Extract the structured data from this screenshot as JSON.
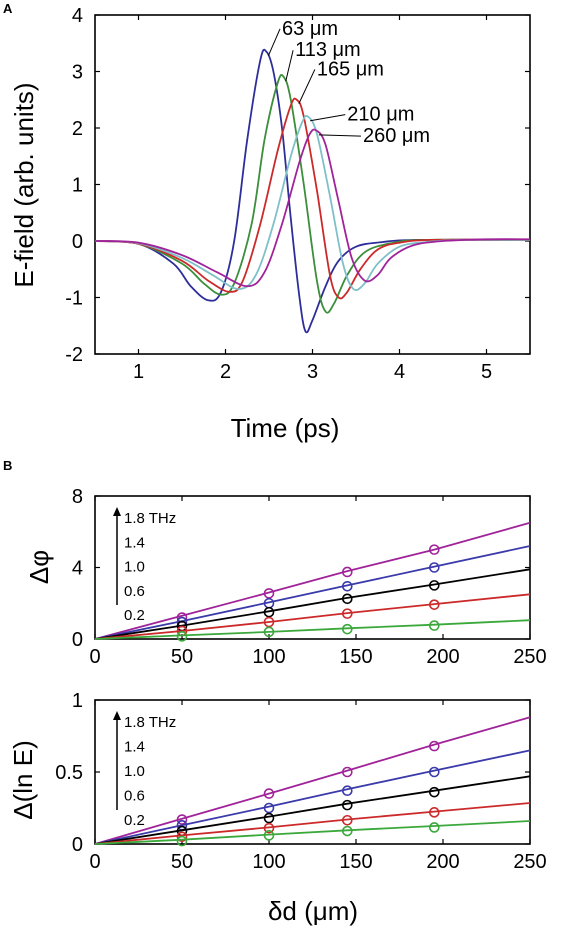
{
  "chart_data": [
    {
      "panel": "A",
      "type": "line",
      "xlabel": "Time (ps)",
      "ylabel": "E-field (arb. units)",
      "xlim": [
        0.5,
        5.5
      ],
      "ylim": [
        -2,
        4
      ],
      "xticks": [
        1,
        2,
        3,
        4,
        5
      ],
      "yticks": [
        -2,
        -1,
        0,
        1,
        2,
        3,
        4
      ],
      "grid": false,
      "series": [
        {
          "name": "63 μm",
          "color": "#2e2e9a",
          "x": [
            0.5,
            1.0,
            1.4,
            1.6,
            1.8,
            1.95,
            2.1,
            2.25,
            2.4,
            2.47,
            2.55,
            2.65,
            2.75,
            2.85,
            2.92,
            3.0,
            3.15,
            3.3,
            3.5,
            3.8,
            4.2,
            5.5
          ],
          "y": [
            0,
            -0.05,
            -0.4,
            -0.8,
            -1.05,
            -0.9,
            0.0,
            1.8,
            3.2,
            3.35,
            3.0,
            2.0,
            0.4,
            -1.0,
            -1.6,
            -1.4,
            -0.8,
            -0.35,
            -0.1,
            -0.02,
            0.02,
            0.02
          ]
        },
        {
          "name": "113 μm",
          "color": "#3b8e3b",
          "x": [
            0.5,
            1.0,
            1.5,
            1.75,
            1.95,
            2.1,
            2.3,
            2.45,
            2.6,
            2.67,
            2.75,
            2.9,
            3.05,
            3.15,
            3.25,
            3.4,
            3.6,
            3.9,
            4.3,
            5.5
          ],
          "y": [
            0,
            -0.05,
            -0.4,
            -0.75,
            -0.95,
            -0.75,
            0.3,
            1.8,
            2.8,
            2.9,
            2.5,
            1.0,
            -0.7,
            -1.25,
            -1.1,
            -0.6,
            -0.2,
            -0.04,
            0.02,
            0.02
          ]
        },
        {
          "name": "165 μm",
          "color": "#cc2a2a",
          "x": [
            0.5,
            1.0,
            1.5,
            1.8,
            2.05,
            2.2,
            2.4,
            2.6,
            2.75,
            2.82,
            2.9,
            3.05,
            3.2,
            3.3,
            3.4,
            3.55,
            3.75,
            4.0,
            4.4,
            5.5
          ],
          "y": [
            0,
            -0.05,
            -0.35,
            -0.7,
            -0.9,
            -0.7,
            0.3,
            1.6,
            2.4,
            2.5,
            2.2,
            0.9,
            -0.6,
            -1.0,
            -0.9,
            -0.5,
            -0.15,
            -0.03,
            0.02,
            0.02
          ]
        },
        {
          "name": "210 μm",
          "color": "#7fc0c8",
          "x": [
            0.5,
            1.0,
            1.5,
            1.85,
            2.15,
            2.35,
            2.55,
            2.75,
            2.88,
            2.95,
            3.05,
            3.2,
            3.35,
            3.47,
            3.6,
            3.75,
            4.0,
            4.3,
            4.7,
            5.5
          ],
          "y": [
            0,
            -0.04,
            -0.3,
            -0.6,
            -0.85,
            -0.6,
            0.3,
            1.5,
            2.1,
            2.2,
            1.9,
            0.8,
            -0.4,
            -0.85,
            -0.75,
            -0.4,
            -0.1,
            -0.02,
            0.02,
            0.02
          ]
        },
        {
          "name": "260 μm",
          "color": "#a0239a",
          "x": [
            0.5,
            1.0,
            1.5,
            1.9,
            2.25,
            2.45,
            2.65,
            2.85,
            2.97,
            3.05,
            3.15,
            3.3,
            3.45,
            3.6,
            3.75,
            3.9,
            4.15,
            4.5,
            5.0,
            5.5
          ],
          "y": [
            0,
            -0.03,
            -0.25,
            -0.55,
            -0.8,
            -0.55,
            0.3,
            1.4,
            1.9,
            1.95,
            1.7,
            0.7,
            -0.3,
            -0.7,
            -0.6,
            -0.3,
            -0.08,
            0.0,
            0.03,
            0.03
          ]
        }
      ],
      "annotations": [
        {
          "text": "63 μm",
          "x": 2.65,
          "y": 3.65
        },
        {
          "text": "113 μm",
          "x": 2.8,
          "y": 3.27
        },
        {
          "text": "165 μm",
          "x": 3.05,
          "y": 2.93
        },
        {
          "text": "210 μm",
          "x": 3.4,
          "y": 2.13
        },
        {
          "text": "260 μm",
          "x": 3.58,
          "y": 1.75
        }
      ]
    },
    {
      "panel": "B",
      "type": "line",
      "xlabel": "",
      "ylabel": "Δφ",
      "xlim": [
        0,
        250
      ],
      "ylim": [
        0,
        8
      ],
      "xticks": [
        0,
        50,
        100,
        150,
        200,
        250
      ],
      "yticks": [
        0,
        4,
        8
      ],
      "grid": false,
      "frequency_labels": [
        "1.8 THz",
        "1.4",
        "1.0",
        "0.6",
        "0.2"
      ],
      "series": [
        {
          "name": "1.8 THz",
          "color": "#a0239a",
          "x": [
            0,
            50,
            100,
            145,
            195,
            250
          ],
          "y": [
            0,
            1.3,
            2.6,
            3.8,
            5.0,
            6.5
          ],
          "points_x": [
            50,
            100,
            145,
            195
          ],
          "points_y": [
            1.2,
            2.55,
            3.75,
            5.0
          ]
        },
        {
          "name": "1.4",
          "color": "#3a3aaa",
          "x": [
            0,
            50,
            100,
            145,
            195,
            250
          ],
          "y": [
            0,
            1.0,
            2.05,
            3.0,
            4.05,
            5.2
          ],
          "points_x": [
            50,
            100,
            145,
            195
          ],
          "points_y": [
            0.95,
            2.0,
            2.95,
            4.0
          ]
        },
        {
          "name": "1.0",
          "color": "#000000",
          "x": [
            0,
            50,
            100,
            145,
            195,
            250
          ],
          "y": [
            0,
            0.75,
            1.55,
            2.3,
            3.05,
            3.9
          ],
          "points_x": [
            50,
            100,
            145,
            195
          ],
          "points_y": [
            0.72,
            1.5,
            2.25,
            3.0
          ]
        },
        {
          "name": "0.6",
          "color": "#cc2a2a",
          "x": [
            0,
            50,
            100,
            145,
            195,
            250
          ],
          "y": [
            0,
            0.45,
            0.95,
            1.45,
            1.95,
            2.5
          ],
          "points_x": [
            50,
            100,
            145,
            195
          ],
          "points_y": [
            0.45,
            0.95,
            1.42,
            1.92
          ]
        },
        {
          "name": "0.2",
          "color": "#3ba83b",
          "x": [
            0,
            50,
            100,
            145,
            195,
            250
          ],
          "y": [
            0,
            0.2,
            0.4,
            0.6,
            0.8,
            1.05
          ],
          "points_x": [
            50,
            100,
            145,
            195
          ],
          "points_y": [
            0.15,
            0.4,
            0.55,
            0.75
          ]
        }
      ]
    },
    {
      "panel": "B-lower",
      "type": "line",
      "xlabel": "δd (μm)",
      "ylabel": "Δ(ln E)",
      "xlim": [
        0,
        250
      ],
      "ylim": [
        0,
        1
      ],
      "xticks": [
        0,
        50,
        100,
        150,
        200,
        250
      ],
      "yticks": [
        0,
        0.5,
        1
      ],
      "grid": false,
      "frequency_labels": [
        "1.8 THz",
        "1.4",
        "1.0",
        "0.6",
        "0.2"
      ],
      "series": [
        {
          "name": "1.8 THz",
          "color": "#a0239a",
          "x": [
            0,
            50,
            100,
            145,
            195,
            250
          ],
          "y": [
            0,
            0.175,
            0.35,
            0.51,
            0.69,
            0.88
          ],
          "points_x": [
            50,
            100,
            145,
            195
          ],
          "points_y": [
            0.17,
            0.35,
            0.5,
            0.68
          ]
        },
        {
          "name": "1.4",
          "color": "#3a3aaa",
          "x": [
            0,
            50,
            100,
            145,
            195,
            250
          ],
          "y": [
            0,
            0.13,
            0.26,
            0.38,
            0.51,
            0.65
          ],
          "points_x": [
            50,
            100,
            145,
            195
          ],
          "points_y": [
            0.13,
            0.25,
            0.37,
            0.5
          ]
        },
        {
          "name": "1.0",
          "color": "#000000",
          "x": [
            0,
            50,
            100,
            145,
            195,
            250
          ],
          "y": [
            0,
            0.095,
            0.19,
            0.28,
            0.37,
            0.47
          ],
          "points_x": [
            50,
            100,
            145,
            195
          ],
          "points_y": [
            0.09,
            0.18,
            0.27,
            0.36
          ]
        },
        {
          "name": "0.6",
          "color": "#cc2a2a",
          "x": [
            0,
            50,
            100,
            145,
            195,
            250
          ],
          "y": [
            0,
            0.06,
            0.115,
            0.17,
            0.225,
            0.285
          ],
          "points_x": [
            50,
            100,
            145,
            195
          ],
          "points_y": [
            0.05,
            0.11,
            0.165,
            0.22
          ]
        },
        {
          "name": "0.2",
          "color": "#3ba83b",
          "x": [
            0,
            50,
            100,
            145,
            195,
            250
          ],
          "y": [
            0,
            0.03,
            0.065,
            0.095,
            0.125,
            0.16
          ],
          "points_x": [
            50,
            100,
            145,
            195
          ],
          "points_y": [
            0.02,
            0.06,
            0.09,
            0.115
          ]
        }
      ]
    }
  ]
}
